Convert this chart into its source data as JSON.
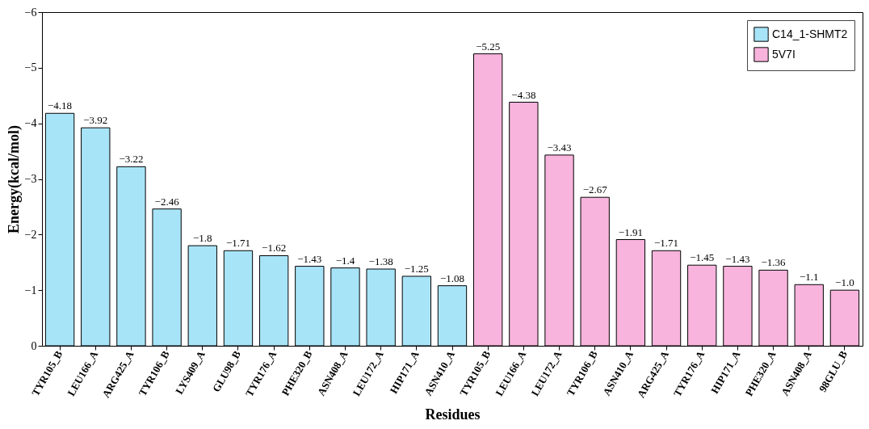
{
  "chart_data": {
    "type": "bar",
    "xlabel": "Residues",
    "ylabel": "Energy(kcal/mol)",
    "categories": [
      "TYR105_B",
      "LEU166_A",
      "ARG425_A",
      "TYR106_B",
      "LYS409_A",
      "GLU98_B",
      "TYR176_A",
      "PHE320_B",
      "ASN408_A",
      "LEU172_A",
      "HIP171_A",
      "ASN410_A",
      "TYR105_B",
      "LEU166_A",
      "LEU172_A",
      "TYR106_B",
      "ASN410_A",
      "ARG425_A",
      "TYR176_A",
      "HIP171_A",
      "PHE320_A",
      "ASN408_A",
      "98GLU_B"
    ],
    "series": [
      {
        "name": "C14_1-SHMT2",
        "color": "#a8e4f8",
        "values": [
          -4.18,
          -3.92,
          -3.22,
          -2.46,
          -1.8,
          -1.71,
          -1.62,
          -1.43,
          -1.4,
          -1.38,
          -1.25,
          -1.08,
          null,
          null,
          null,
          null,
          null,
          null,
          null,
          null,
          null,
          null,
          null
        ],
        "value_labels": [
          "−4.18",
          "−3.92",
          "−3.22",
          "−2.46",
          "−1.8",
          "−1.71",
          "−1.62",
          "−1.43",
          "−1.4",
          "−1.38",
          "−1.25",
          "−1.08",
          null,
          null,
          null,
          null,
          null,
          null,
          null,
          null,
          null,
          null,
          null
        ]
      },
      {
        "name": "5V7I",
        "color": "#f8b4dc",
        "values": [
          null,
          null,
          null,
          null,
          null,
          null,
          null,
          null,
          null,
          null,
          null,
          null,
          -5.25,
          -4.38,
          -3.43,
          -2.67,
          -1.91,
          -1.71,
          -1.45,
          -1.43,
          -1.36,
          -1.1,
          -1.0
        ],
        "value_labels": [
          null,
          null,
          null,
          null,
          null,
          null,
          null,
          null,
          null,
          null,
          null,
          null,
          "−5.25",
          "−4.38",
          "−3.43",
          "−2.67",
          "−1.91",
          "−1.71",
          "−1.45",
          "−1.43",
          "−1.36",
          "−1.1",
          "−1.0"
        ]
      }
    ],
    "ylim": [
      0,
      -6
    ],
    "yticks": [
      {
        "value": 0,
        "label": "0"
      },
      {
        "value": -1,
        "label": "−1"
      },
      {
        "value": -2,
        "label": "−2"
      },
      {
        "value": -3,
        "label": "−3"
      },
      {
        "value": -4,
        "label": "−4"
      },
      {
        "value": -5,
        "label": "−5"
      },
      {
        "value": -6,
        "label": "−6"
      }
    ],
    "legend": "top right",
    "grid": false
  }
}
